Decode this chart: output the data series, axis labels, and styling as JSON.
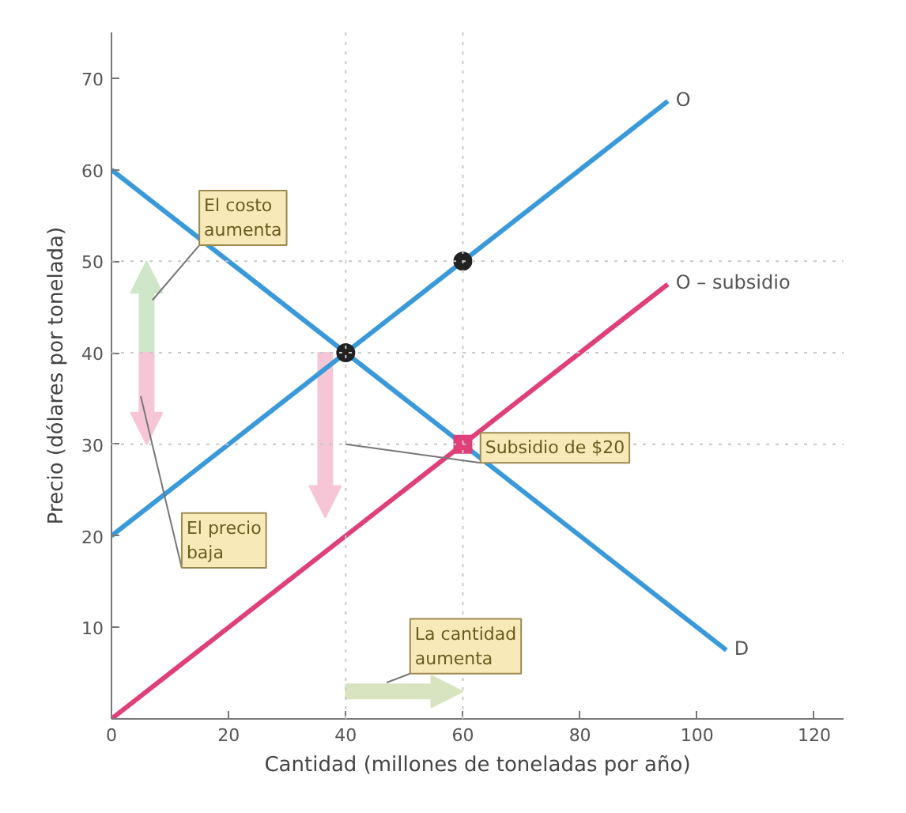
{
  "chart_data": {
    "type": "line",
    "xlabel": "Cantidad (millones de toneladas por año)",
    "ylabel": "Precio (dólares por tonelada)",
    "xlim": [
      0,
      125
    ],
    "ylim": [
      0,
      75
    ],
    "xticks": [
      0,
      20,
      40,
      60,
      80,
      100,
      120
    ],
    "yticks": [
      10,
      20,
      30,
      40,
      50,
      60,
      70
    ],
    "grid": false,
    "legend": false,
    "line_style": "solid",
    "marker": "none",
    "series": [
      {
        "name": "O",
        "color": "#3a9ad9",
        "x": [
          0,
          95
        ],
        "values": [
          20,
          67.5
        ]
      },
      {
        "name": "O – subsidio",
        "color": "#e0407a",
        "x": [
          0,
          95
        ],
        "values": [
          0,
          47.5
        ]
      },
      {
        "name": "D",
        "color": "#3a9ad9",
        "x": [
          0,
          105
        ],
        "values": [
          60,
          7.5
        ]
      },
      {
        "type": "scatter",
        "marker": "circle",
        "color": "#222222",
        "x": [
          40,
          60
        ],
        "values": [
          40,
          50
        ]
      },
      {
        "type": "scatter",
        "marker": "square",
        "color": "#e0407a",
        "x": [
          60
        ],
        "values": [
          30
        ]
      }
    ],
    "ref_lines": [
      {
        "axis": "y",
        "value": 50,
        "line_style": "dotted",
        "color": "#c8c8c8"
      },
      {
        "axis": "y",
        "value": 40,
        "line_style": "dotted",
        "color": "#c8c8c8"
      },
      {
        "axis": "y",
        "value": 30,
        "line_style": "dotted",
        "color": "#c8c8c8"
      },
      {
        "axis": "x",
        "value": 40,
        "line_style": "dotted",
        "color": "#c8c8c8"
      },
      {
        "axis": "x",
        "value": 60,
        "line_style": "dotted",
        "color": "#c8c8c8"
      }
    ],
    "annotations": [
      "El costo aumenta",
      "El precio baja",
      {
        "text": "Subsidio de $20",
        "x": 40,
        "y": 30
      },
      "La cantidad aumenta"
    ]
  }
}
